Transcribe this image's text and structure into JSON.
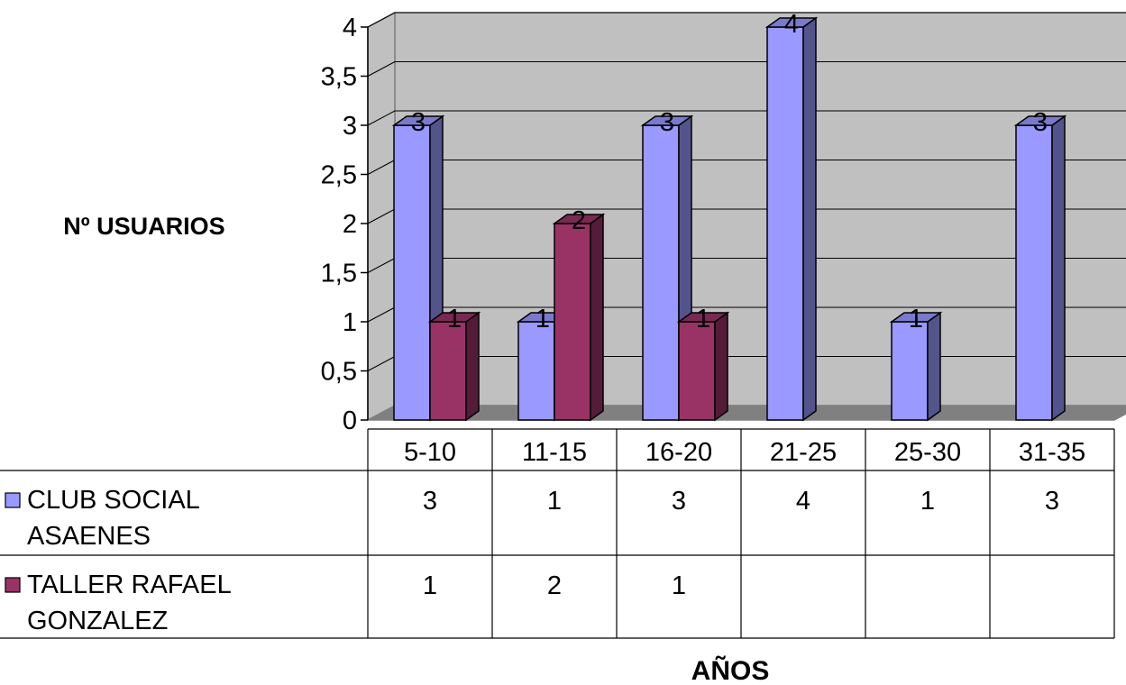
{
  "chart_data": {
    "type": "bar",
    "style": "3d-clustered-column-with-data-table",
    "categories": [
      "5-10",
      "11-15",
      "16-20",
      "21-25",
      "25-30",
      "31-35"
    ],
    "series": [
      {
        "name": "CLUB SOCIAL ASAENES",
        "name_lines": [
          "CLUB SOCIAL",
          "ASAENES"
        ],
        "values": [
          3,
          1,
          3,
          4,
          1,
          3
        ],
        "color": "#9999ff"
      },
      {
        "name": "TALLER RAFAEL GONZALEZ",
        "name_lines": [
          "TALLER RAFAEL",
          "GONZALEZ"
        ],
        "values": [
          1,
          2,
          1,
          null,
          null,
          null
        ],
        "color": "#993366"
      }
    ],
    "ylabel": "Nº USUARIOS",
    "xlabel": "AÑOS",
    "ylim": [
      0,
      4
    ],
    "yticks": [
      0,
      0.5,
      1,
      1.5,
      2,
      2.5,
      3,
      3.5,
      4
    ],
    "ytick_labels": [
      "0",
      "0,5",
      "1",
      "1,5",
      "2",
      "2,5",
      "3",
      "3,5",
      "4"
    ],
    "grid": true,
    "data_labels": true,
    "legend": "data-table-keys",
    "colors": {
      "wall": "#c0c0c0",
      "floor": "#808080",
      "gridline": "#000000"
    }
  }
}
